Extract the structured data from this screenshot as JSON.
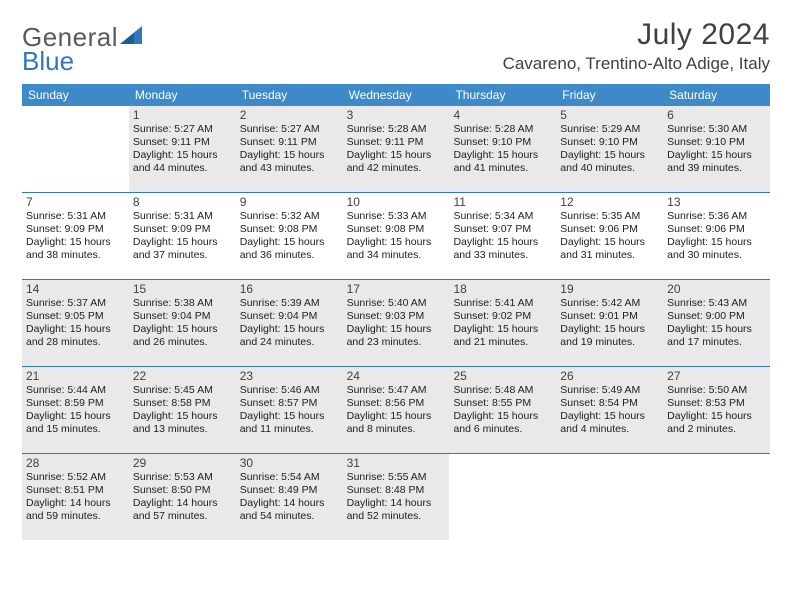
{
  "brand": {
    "part1": "General",
    "part2": "Blue"
  },
  "title": "July 2024",
  "location": "Cavareno, Trentino-Alto Adige, Italy",
  "colors": {
    "header_bg": "#3e8ac9",
    "rule": "#2f78bd",
    "highlight_bg": "#e9e9e9",
    "text": "#404040",
    "body_text": "#202020"
  },
  "typography": {
    "title_fontsize": 30,
    "location_fontsize": 17,
    "weekday_fontsize": 12,
    "daynum_fontsize": 12,
    "info_fontsize": 10.5
  },
  "weekdays": [
    "Sunday",
    "Monday",
    "Tuesday",
    "Wednesday",
    "Thursday",
    "Friday",
    "Saturday"
  ],
  "weeks": [
    {
      "highlight": true,
      "days": [
        {
          "num": "",
          "sunrise": "",
          "sunset": "",
          "daylight": ""
        },
        {
          "num": "1",
          "sunrise": "Sunrise: 5:27 AM",
          "sunset": "Sunset: 9:11 PM",
          "daylight": "Daylight: 15 hours and 44 minutes."
        },
        {
          "num": "2",
          "sunrise": "Sunrise: 5:27 AM",
          "sunset": "Sunset: 9:11 PM",
          "daylight": "Daylight: 15 hours and 43 minutes."
        },
        {
          "num": "3",
          "sunrise": "Sunrise: 5:28 AM",
          "sunset": "Sunset: 9:11 PM",
          "daylight": "Daylight: 15 hours and 42 minutes."
        },
        {
          "num": "4",
          "sunrise": "Sunrise: 5:28 AM",
          "sunset": "Sunset: 9:10 PM",
          "daylight": "Daylight: 15 hours and 41 minutes."
        },
        {
          "num": "5",
          "sunrise": "Sunrise: 5:29 AM",
          "sunset": "Sunset: 9:10 PM",
          "daylight": "Daylight: 15 hours and 40 minutes."
        },
        {
          "num": "6",
          "sunrise": "Sunrise: 5:30 AM",
          "sunset": "Sunset: 9:10 PM",
          "daylight": "Daylight: 15 hours and 39 minutes."
        }
      ]
    },
    {
      "highlight": false,
      "days": [
        {
          "num": "7",
          "sunrise": "Sunrise: 5:31 AM",
          "sunset": "Sunset: 9:09 PM",
          "daylight": "Daylight: 15 hours and 38 minutes."
        },
        {
          "num": "8",
          "sunrise": "Sunrise: 5:31 AM",
          "sunset": "Sunset: 9:09 PM",
          "daylight": "Daylight: 15 hours and 37 minutes."
        },
        {
          "num": "9",
          "sunrise": "Sunrise: 5:32 AM",
          "sunset": "Sunset: 9:08 PM",
          "daylight": "Daylight: 15 hours and 36 minutes."
        },
        {
          "num": "10",
          "sunrise": "Sunrise: 5:33 AM",
          "sunset": "Sunset: 9:08 PM",
          "daylight": "Daylight: 15 hours and 34 minutes."
        },
        {
          "num": "11",
          "sunrise": "Sunrise: 5:34 AM",
          "sunset": "Sunset: 9:07 PM",
          "daylight": "Daylight: 15 hours and 33 minutes."
        },
        {
          "num": "12",
          "sunrise": "Sunrise: 5:35 AM",
          "sunset": "Sunset: 9:06 PM",
          "daylight": "Daylight: 15 hours and 31 minutes."
        },
        {
          "num": "13",
          "sunrise": "Sunrise: 5:36 AM",
          "sunset": "Sunset: 9:06 PM",
          "daylight": "Daylight: 15 hours and 30 minutes."
        }
      ]
    },
    {
      "highlight": true,
      "days": [
        {
          "num": "14",
          "sunrise": "Sunrise: 5:37 AM",
          "sunset": "Sunset: 9:05 PM",
          "daylight": "Daylight: 15 hours and 28 minutes."
        },
        {
          "num": "15",
          "sunrise": "Sunrise: 5:38 AM",
          "sunset": "Sunset: 9:04 PM",
          "daylight": "Daylight: 15 hours and 26 minutes."
        },
        {
          "num": "16",
          "sunrise": "Sunrise: 5:39 AM",
          "sunset": "Sunset: 9:04 PM",
          "daylight": "Daylight: 15 hours and 24 minutes."
        },
        {
          "num": "17",
          "sunrise": "Sunrise: 5:40 AM",
          "sunset": "Sunset: 9:03 PM",
          "daylight": "Daylight: 15 hours and 23 minutes."
        },
        {
          "num": "18",
          "sunrise": "Sunrise: 5:41 AM",
          "sunset": "Sunset: 9:02 PM",
          "daylight": "Daylight: 15 hours and 21 minutes."
        },
        {
          "num": "19",
          "sunrise": "Sunrise: 5:42 AM",
          "sunset": "Sunset: 9:01 PM",
          "daylight": "Daylight: 15 hours and 19 minutes."
        },
        {
          "num": "20",
          "sunrise": "Sunrise: 5:43 AM",
          "sunset": "Sunset: 9:00 PM",
          "daylight": "Daylight: 15 hours and 17 minutes."
        }
      ]
    },
    {
      "highlight": true,
      "days": [
        {
          "num": "21",
          "sunrise": "Sunrise: 5:44 AM",
          "sunset": "Sunset: 8:59 PM",
          "daylight": "Daylight: 15 hours and 15 minutes."
        },
        {
          "num": "22",
          "sunrise": "Sunrise: 5:45 AM",
          "sunset": "Sunset: 8:58 PM",
          "daylight": "Daylight: 15 hours and 13 minutes."
        },
        {
          "num": "23",
          "sunrise": "Sunrise: 5:46 AM",
          "sunset": "Sunset: 8:57 PM",
          "daylight": "Daylight: 15 hours and 11 minutes."
        },
        {
          "num": "24",
          "sunrise": "Sunrise: 5:47 AM",
          "sunset": "Sunset: 8:56 PM",
          "daylight": "Daylight: 15 hours and 8 minutes."
        },
        {
          "num": "25",
          "sunrise": "Sunrise: 5:48 AM",
          "sunset": "Sunset: 8:55 PM",
          "daylight": "Daylight: 15 hours and 6 minutes."
        },
        {
          "num": "26",
          "sunrise": "Sunrise: 5:49 AM",
          "sunset": "Sunset: 8:54 PM",
          "daylight": "Daylight: 15 hours and 4 minutes."
        },
        {
          "num": "27",
          "sunrise": "Sunrise: 5:50 AM",
          "sunset": "Sunset: 8:53 PM",
          "daylight": "Daylight: 15 hours and 2 minutes."
        }
      ]
    },
    {
      "highlight": true,
      "days": [
        {
          "num": "28",
          "sunrise": "Sunrise: 5:52 AM",
          "sunset": "Sunset: 8:51 PM",
          "daylight": "Daylight: 14 hours and 59 minutes."
        },
        {
          "num": "29",
          "sunrise": "Sunrise: 5:53 AM",
          "sunset": "Sunset: 8:50 PM",
          "daylight": "Daylight: 14 hours and 57 minutes."
        },
        {
          "num": "30",
          "sunrise": "Sunrise: 5:54 AM",
          "sunset": "Sunset: 8:49 PM",
          "daylight": "Daylight: 14 hours and 54 minutes."
        },
        {
          "num": "31",
          "sunrise": "Sunrise: 5:55 AM",
          "sunset": "Sunset: 8:48 PM",
          "daylight": "Daylight: 14 hours and 52 minutes."
        },
        {
          "num": "",
          "sunrise": "",
          "sunset": "",
          "daylight": ""
        },
        {
          "num": "",
          "sunrise": "",
          "sunset": "",
          "daylight": ""
        },
        {
          "num": "",
          "sunrise": "",
          "sunset": "",
          "daylight": ""
        }
      ]
    }
  ]
}
